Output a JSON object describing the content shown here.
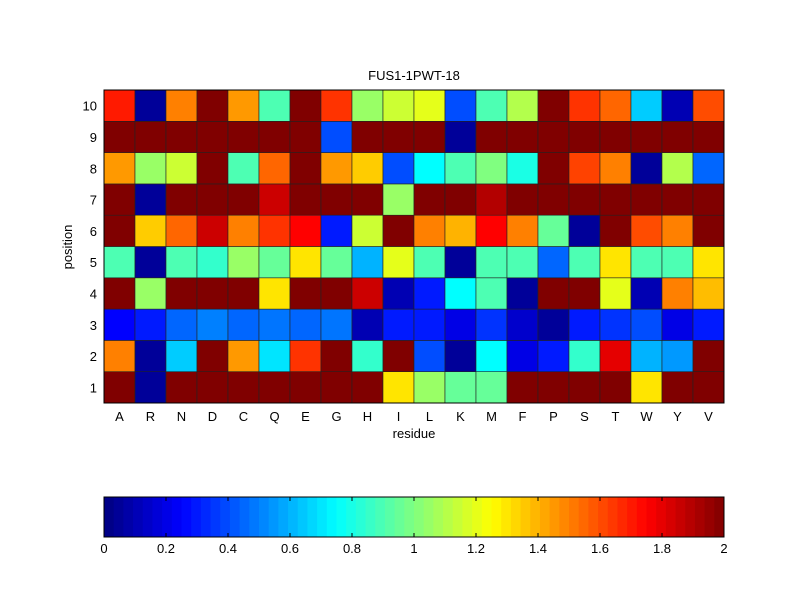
{
  "chart_data": {
    "type": "heatmap",
    "title": "FUS1-1PWT-18",
    "xlabel": "residue",
    "ylabel": "position",
    "x_categories": [
      "A",
      "R",
      "N",
      "D",
      "C",
      "Q",
      "E",
      "G",
      "H",
      "I",
      "L",
      "K",
      "M",
      "F",
      "P",
      "S",
      "T",
      "W",
      "Y",
      "V"
    ],
    "y_categories": [
      "1",
      "2",
      "3",
      "4",
      "5",
      "6",
      "7",
      "8",
      "9",
      "10"
    ],
    "colormap": "jet",
    "clim": [
      0,
      2
    ],
    "colorbar": {
      "placement": "bottom",
      "ticks": [
        "0",
        "0.2",
        "0.4",
        "0.6",
        "0.8",
        "1",
        "1.2",
        "1.4",
        "1.6",
        "1.8",
        "2"
      ]
    },
    "values": [
      [
        2,
        0.05,
        2,
        2,
        2,
        2,
        2,
        2,
        2,
        1.3,
        1.05,
        0.95,
        0.95,
        2,
        2,
        2,
        2,
        1.3,
        2,
        2
      ],
      [
        1.5,
        0.05,
        0.65,
        2,
        1.45,
        0.7,
        1.65,
        2,
        0.85,
        2,
        0.4,
        0.05,
        0.75,
        0.2,
        0.3,
        0.85,
        1.8,
        0.6,
        0.55,
        2
      ],
      [
        0.25,
        0.3,
        0.45,
        0.5,
        0.45,
        0.48,
        0.45,
        0.48,
        0.1,
        0.3,
        0.3,
        0.2,
        0.35,
        0.15,
        0.05,
        0.3,
        0.35,
        0.4,
        0.2,
        0.3
      ],
      [
        2,
        1.05,
        2,
        2,
        2,
        1.3,
        2,
        2,
        1.85,
        0.1,
        0.3,
        0.75,
        0.9,
        0.05,
        2,
        2,
        1.2,
        0.1,
        1.5,
        1.38
      ],
      [
        0.9,
        0.05,
        0.9,
        0.85,
        1.05,
        0.95,
        1.3,
        0.95,
        0.6,
        1.2,
        0.9,
        0.05,
        0.9,
        0.9,
        0.45,
        0.9,
        1.3,
        0.9,
        0.9,
        1.3
      ],
      [
        2,
        1.35,
        1.55,
        1.85,
        1.5,
        1.65,
        1.75,
        0.3,
        1.15,
        2,
        1.5,
        1.4,
        1.75,
        1.5,
        0.95,
        0.05,
        2,
        1.6,
        1.5,
        2
      ],
      [
        2,
        0.05,
        2,
        2,
        2,
        1.85,
        2,
        2,
        2,
        1.05,
        2,
        2,
        1.9,
        2,
        2,
        2,
        2,
        2,
        2,
        2
      ],
      [
        1.45,
        1.05,
        1.15,
        2,
        0.9,
        1.55,
        2,
        1.45,
        1.35,
        0.4,
        0.75,
        0.9,
        1.0,
        0.8,
        2,
        1.62,
        1.5,
        0.05,
        1.1,
        0.45
      ],
      [
        2,
        2,
        2,
        2,
        2,
        2,
        2,
        0.4,
        2,
        2,
        2,
        0.05,
        2,
        2,
        2,
        2,
        2,
        2,
        2,
        2
      ],
      [
        1.7,
        0.05,
        1.5,
        2,
        1.45,
        0.9,
        2,
        1.65,
        1.05,
        1.15,
        1.2,
        0.4,
        0.9,
        1.1,
        2,
        1.65,
        1.55,
        0.65,
        0.1,
        1.6
      ]
    ]
  }
}
